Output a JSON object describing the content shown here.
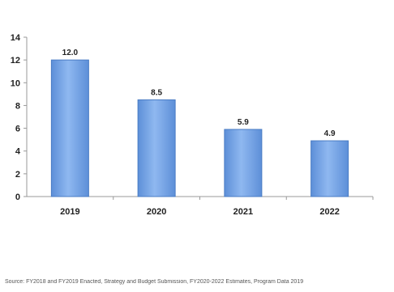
{
  "chart_data": {
    "type": "bar",
    "categories": [
      "2019",
      "2020",
      "2021",
      "2022"
    ],
    "values": [
      12.0,
      8.5,
      5.9,
      4.9
    ],
    "data_labels": [
      "12.0",
      "8.5",
      "5.9",
      "4.9"
    ],
    "ylim": [
      0,
      14
    ],
    "yticks": [
      0,
      2,
      4,
      6,
      8,
      10,
      12,
      14
    ],
    "grid": false,
    "legend": "none",
    "bar_color": "#6f9fe3",
    "bar_edge_color": "#4a7cc4"
  },
  "source_note": "Source: FY2018 and FY2019 Enacted, Strategy and Budget Submission, FY2020-2022 Estimates, Program Data 2019"
}
